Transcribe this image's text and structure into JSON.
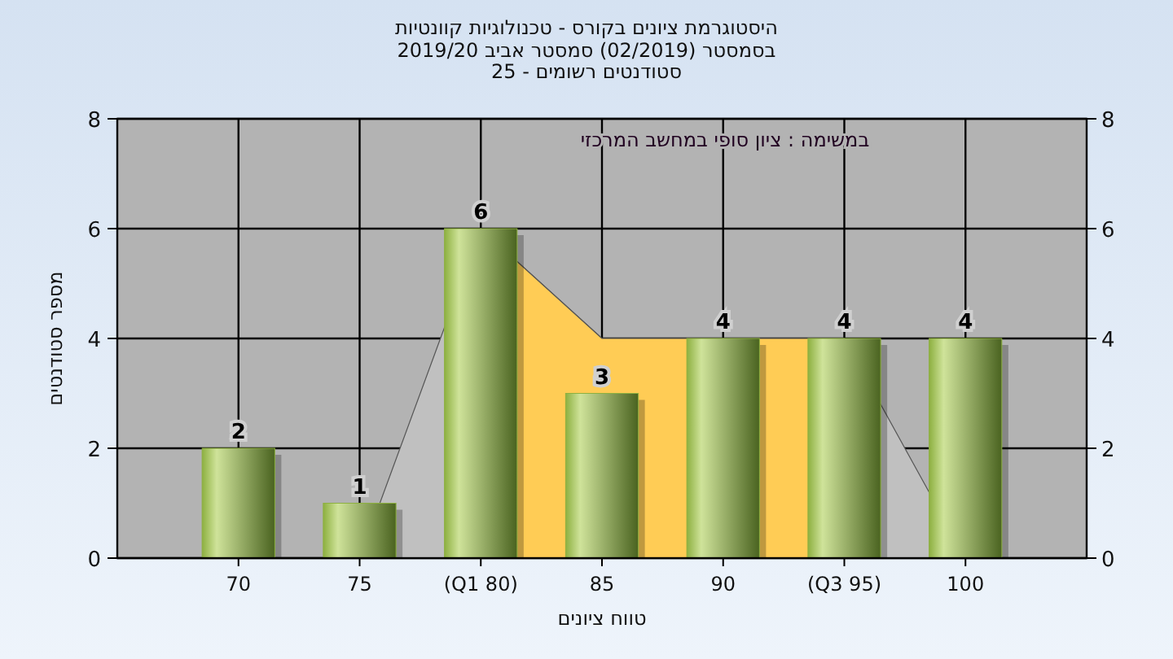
{
  "chart_data": {
    "type": "bar",
    "title": "היסטוגרמת ציונים בקורס - טכנולוגיות קוונטיות",
    "subtitle": [
      "בסמסטר  (02/2019)  סמסטר אביב 2019/20",
      "סטודנטים רשומים - 25"
    ],
    "xlabel": "טווח ציונים",
    "ylabel": "מספר סטודנטים",
    "annotations": [
      "במשימה : ציון סופי במחשב המרכזי"
    ],
    "categories": [
      "70",
      "75",
      "(Q1 80)",
      "85",
      "90",
      "(Q3 95)",
      "100"
    ],
    "series": [
      {
        "type": "area",
        "color": "#c0c0c0",
        "values": [
          null,
          0,
          6,
          4,
          4,
          4,
          0
        ]
      },
      {
        "type": "area",
        "color": "#ffcc55",
        "values": [
          null,
          null,
          6,
          4,
          4,
          4,
          null
        ]
      },
      {
        "color": "#8db040",
        "values": [
          2,
          1,
          6,
          3,
          4,
          4,
          4
        ],
        "value_labels": [
          "2",
          "1",
          "6",
          "3",
          "4",
          "4",
          "4"
        ]
      }
    ],
    "ylim": [
      0,
      8
    ],
    "yticks": [
      0,
      2,
      4,
      6,
      8
    ],
    "y2lim": [
      0,
      8
    ],
    "y2ticks": [
      0,
      2,
      4,
      6,
      8
    ],
    "grid": true
  }
}
